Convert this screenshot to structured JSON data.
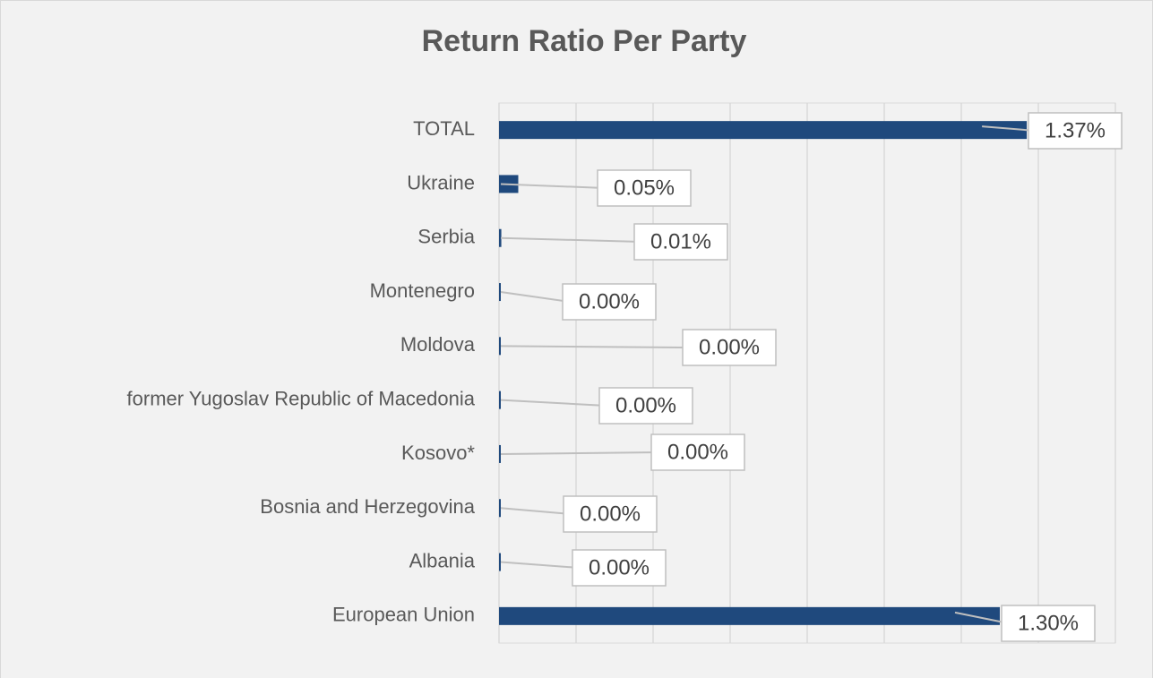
{
  "chart_data": {
    "type": "hbar",
    "title": "Return Ratio Per Party",
    "categories": [
      "TOTAL",
      "Ukraine",
      "Serbia",
      "Montenegro",
      "Moldova",
      "former Yugoslav Republic of Macedonia",
      "Kosovo*",
      "Bosnia and Herzegovina",
      "Albania",
      "European Union"
    ],
    "values": [
      1.37,
      0.05,
      0.006,
      0.002,
      0.002,
      0.002,
      0.002,
      0.002,
      0.002,
      1.3
    ],
    "value_labels": [
      "1.37%",
      "0.05%",
      "0.01%",
      "0.00%",
      "0.00%",
      "0.00%",
      "0.00%",
      "0.00%",
      "0.00%",
      "1.30%"
    ],
    "color": "#1f497d",
    "xlim": [
      0,
      1.6
    ],
    "xticks": [
      0,
      0.2,
      0.4,
      0.6,
      0.8,
      1.0,
      1.2,
      1.4,
      1.6
    ],
    "grid": true
  }
}
